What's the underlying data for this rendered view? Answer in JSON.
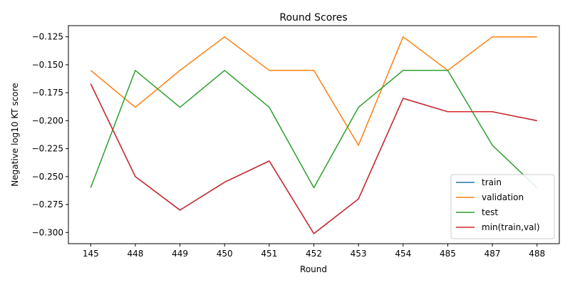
{
  "chart_data": {
    "type": "line",
    "title": "Round Scores",
    "xlabel": "Round",
    "ylabel": "Negative log10 KT score",
    "categories": [
      "145",
      "448",
      "449",
      "450",
      "451",
      "452",
      "453",
      "454",
      "485",
      "487",
      "488"
    ],
    "ylim": [
      -0.31,
      -0.115
    ],
    "yticks": [
      -0.125,
      -0.15,
      -0.175,
      -0.2,
      -0.225,
      -0.25,
      -0.275,
      -0.3
    ],
    "ytick_labels": [
      "−0.125",
      "−0.150",
      "−0.175",
      "−0.200",
      "−0.225",
      "−0.250",
      "−0.275",
      "−0.300"
    ],
    "grid": false,
    "legend_position": "bottom-right",
    "series": [
      {
        "name": "train",
        "color": "#1f77b4",
        "values": [
          -0.167,
          -0.25,
          -0.28,
          -0.255,
          -0.236,
          -0.301,
          -0.27,
          -0.18,
          -0.192,
          -0.192,
          -0.2
        ]
      },
      {
        "name": "validation",
        "color": "#ff7f0e",
        "values": [
          -0.155,
          -0.188,
          -0.155,
          -0.125,
          -0.155,
          -0.155,
          -0.222,
          -0.125,
          -0.155,
          -0.125,
          -0.125
        ]
      },
      {
        "name": "test",
        "color": "#2ca02c",
        "values": [
          -0.26,
          -0.155,
          -0.188,
          -0.155,
          -0.188,
          -0.26,
          -0.188,
          -0.155,
          -0.155,
          -0.222,
          -0.26
        ]
      },
      {
        "name": "min(train,val)",
        "color": "#d62728",
        "values": [
          -0.167,
          -0.25,
          -0.28,
          -0.255,
          -0.236,
          -0.301,
          -0.27,
          -0.18,
          -0.192,
          -0.192,
          -0.2
        ]
      }
    ]
  }
}
